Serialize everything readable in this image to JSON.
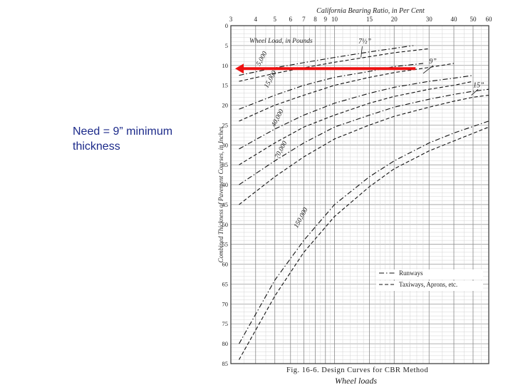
{
  "note": {
    "line1": "Need  = 9” minimum",
    "line2": "thickness"
  },
  "chart_data": {
    "type": "line",
    "title": "California Bearing Ratio, in Per Cent",
    "xlabel": "California Bearing Ratio, in Per Cent",
    "ylabel": "Combined Thickness of Pavement Courses, in Inches",
    "x_scale": "log",
    "xlim": [
      3,
      60
    ],
    "ylim": [
      0,
      85
    ],
    "x_ticks": [
      3,
      4,
      5,
      6,
      7,
      8,
      9,
      10,
      15,
      20,
      30,
      40,
      50,
      60
    ],
    "x_tick_labels": [
      "3",
      "4",
      "5",
      "6",
      "7",
      "8",
      "9",
      "10",
      "15",
      "20",
      "30",
      "40",
      "50",
      "60"
    ],
    "y_ticks": [
      0,
      5,
      10,
      15,
      20,
      25,
      30,
      35,
      40,
      45,
      50,
      55,
      60,
      65,
      70,
      75,
      80,
      85
    ],
    "y_tick_labels": [
      "0",
      "5",
      "10",
      "15",
      "20",
      "25",
      "30",
      "35",
      "40",
      "45",
      "50",
      "55",
      "60",
      "65",
      "70",
      "75",
      "80",
      "85"
    ],
    "grid": true,
    "inner_title": "Wheel Load, in Pounds",
    "caption": "Fig. 16-6.  Design Curves for CBR Method",
    "handwritten_caption": "Wheel loads",
    "legend_position": "bottom-right",
    "legend": [
      {
        "label": "Runways",
        "style": "dash-dot"
      },
      {
        "label": "Taxiways, Aprons, etc.",
        "style": "dashed"
      }
    ],
    "annotations": {
      "cbr_7_5": "7½”",
      "cbr_9": "9”",
      "cbr_15": "15”"
    },
    "highlight_arrow": {
      "color": "#ee1111",
      "y": 10.8,
      "from_cbr": 20,
      "to_cbr": 3
    },
    "series": [
      {
        "name": "5,000",
        "style": "dash-dot",
        "x": [
          3.3,
          5,
          7,
          10,
          15,
          20,
          25
        ],
        "y": [
          12.5,
          10.6,
          9.3,
          8,
          6.6,
          5.7,
          5
        ]
      },
      {
        "name": "",
        "style": "dashed",
        "x": [
          3.3,
          5,
          7,
          10,
          15,
          20,
          30
        ],
        "y": [
          14,
          12,
          10.6,
          9.2,
          7.8,
          6.8,
          5.8
        ]
      },
      {
        "name": "15,000",
        "style": "dash-dot",
        "x": [
          3.3,
          5,
          7,
          10,
          15,
          20,
          28
        ],
        "y": [
          21,
          17.5,
          15,
          13,
          11.5,
          10.3,
          9.5
        ]
      },
      {
        "name": "",
        "style": "dashed",
        "x": [
          3.3,
          5,
          7,
          10,
          15,
          20,
          30,
          40
        ],
        "y": [
          24,
          20,
          17.5,
          15,
          13,
          11.8,
          10.5,
          9.5
        ]
      },
      {
        "name": "40,000",
        "style": "dash-dot",
        "x": [
          3.3,
          5,
          7,
          10,
          15,
          20,
          30,
          40,
          50
        ],
        "y": [
          31,
          26,
          22.5,
          19.5,
          17,
          15.5,
          14,
          13.2,
          12.5
        ]
      },
      {
        "name": "",
        "style": "dashed",
        "x": [
          3.3,
          5,
          7,
          10,
          15,
          20,
          30,
          40,
          50
        ],
        "y": [
          35,
          29.5,
          25.5,
          22.5,
          19.5,
          17.8,
          16,
          15,
          14
        ]
      },
      {
        "name": "70,000",
        "style": "dash-dot",
        "x": [
          3.3,
          5,
          7,
          10,
          15,
          20,
          30,
          40,
          50,
          60
        ],
        "y": [
          40,
          34,
          29.5,
          25.5,
          22.5,
          20.5,
          18.5,
          17.3,
          16.5,
          16
        ]
      },
      {
        "name": "",
        "style": "dashed",
        "x": [
          3.3,
          5,
          7,
          10,
          15,
          20,
          30,
          40,
          50,
          60
        ],
        "y": [
          45,
          38,
          33,
          28.5,
          25,
          22.8,
          20.5,
          19,
          18,
          17.5
        ]
      },
      {
        "name": "150,000",
        "style": "dash-dot",
        "x": [
          3.3,
          5,
          7,
          10,
          15,
          20,
          30,
          40,
          60
        ],
        "y": [
          80,
          64,
          54,
          45,
          38,
          34,
          29.5,
          27,
          24
        ]
      },
      {
        "name": "",
        "style": "dashed",
        "x": [
          3.3,
          5,
          7,
          10,
          15,
          20,
          30,
          40,
          60
        ],
        "y": [
          84,
          68,
          57,
          48,
          40.5,
          36,
          31.5,
          29,
          25.5
        ]
      }
    ]
  }
}
